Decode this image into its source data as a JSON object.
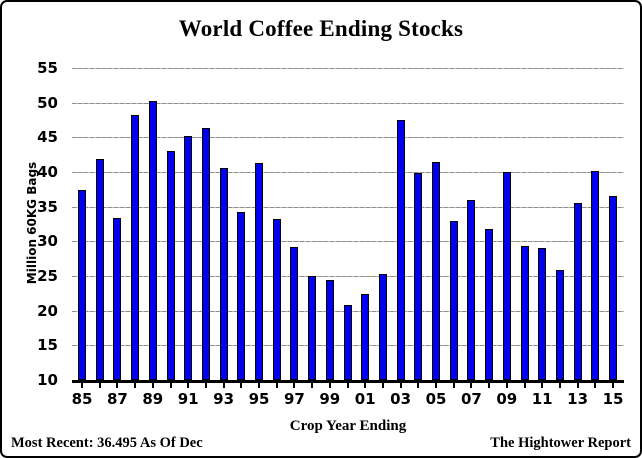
{
  "title": "World Coffee Ending Stocks",
  "footer": {
    "most_recent": "Most Recent: 36.495 As Of Dec",
    "source": "The Hightower Report"
  },
  "chart_data": {
    "type": "bar",
    "title": "World Coffee Ending Stocks",
    "xlabel": "Crop Year Ending",
    "ylabel": "Million 60KG Bags",
    "ylim": [
      10,
      55
    ],
    "yticks": [
      10,
      15,
      20,
      25,
      30,
      35,
      40,
      45,
      50,
      55
    ],
    "grid": true,
    "legend": "none",
    "bar_color": "#0000EE",
    "categories": [
      "85",
      "86",
      "87",
      "88",
      "89",
      "90",
      "91",
      "92",
      "93",
      "94",
      "95",
      "96",
      "97",
      "98",
      "99",
      "00",
      "01",
      "02",
      "03",
      "04",
      "05",
      "06",
      "07",
      "08",
      "09",
      "10",
      "11",
      "12",
      "13",
      "14",
      "15"
    ],
    "xticks_shown": [
      "85",
      "87",
      "89",
      "91",
      "93",
      "95",
      "97",
      "99",
      "01",
      "03",
      "05",
      "07",
      "09",
      "11",
      "13",
      "15"
    ],
    "values": [
      37.4,
      41.9,
      33.4,
      48.2,
      50.2,
      43.0,
      45.2,
      46.3,
      40.6,
      34.3,
      41.3,
      33.2,
      29.2,
      25.0,
      24.4,
      20.8,
      22.4,
      25.3,
      47.5,
      39.9,
      41.4,
      32.9,
      36.0,
      31.8,
      40.0,
      29.3,
      29.0,
      25.9,
      35.6,
      40.2,
      36.495
    ]
  }
}
